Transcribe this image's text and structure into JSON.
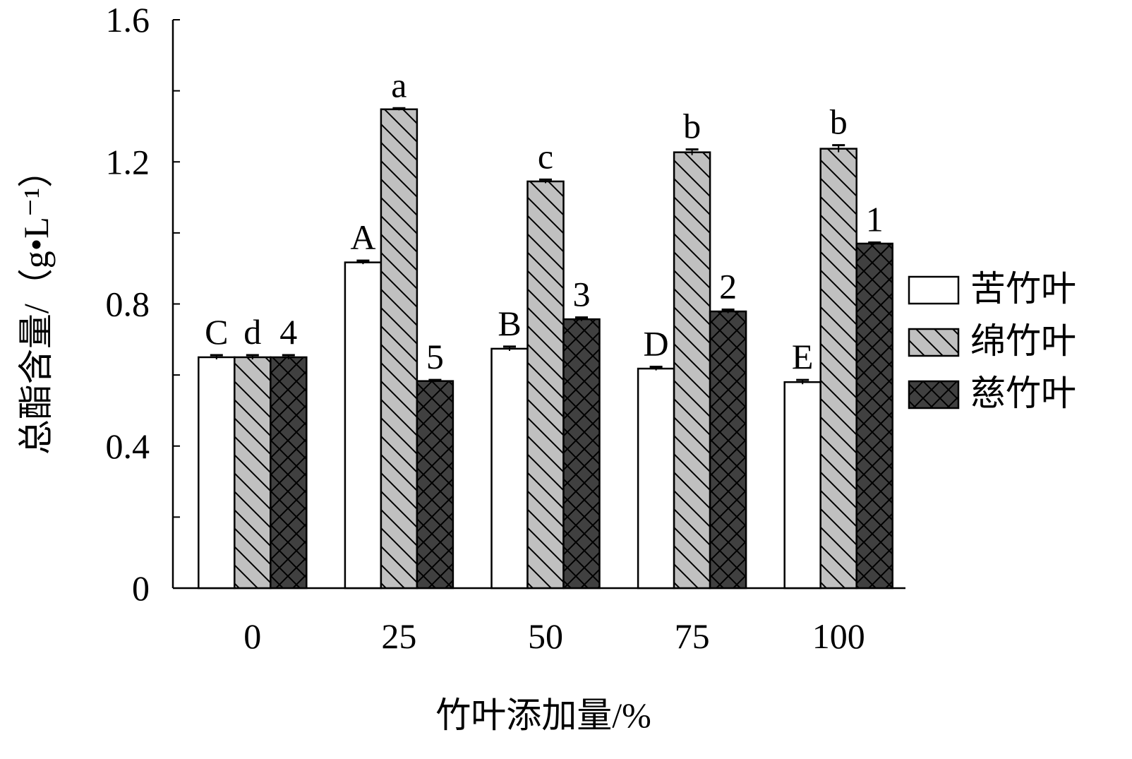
{
  "chart_data": {
    "type": "bar",
    "title": "",
    "xlabel": "竹叶添加量/%",
    "ylabel": "总酯含量/（g•L⁻¹）",
    "ylim": [
      0,
      1.6
    ],
    "yticks": [
      "0",
      "0.4",
      "0.8",
      "1.2",
      "1.6"
    ],
    "ytick_values": [
      0,
      0.4,
      0.8,
      1.2,
      1.6
    ],
    "categories": [
      "0",
      "25",
      "50",
      "75",
      "100"
    ],
    "legend_position": "right",
    "series": [
      {
        "name": "苦竹叶",
        "values": [
          0.65,
          0.917,
          0.674,
          0.618,
          0.58
        ],
        "errors": [
          0.006,
          0.005,
          0.006,
          0.005,
          0.006
        ],
        "labels": [
          "C",
          "A",
          "B",
          "D",
          "E"
        ],
        "color": "#ffffff",
        "pattern": "none"
      },
      {
        "name": "绵竹叶",
        "values": [
          0.65,
          1.348,
          1.145,
          1.227,
          1.237
        ],
        "errors": [
          0.006,
          0.003,
          0.005,
          0.008,
          0.01
        ],
        "labels": [
          "d",
          "a",
          "c",
          "b",
          "b"
        ],
        "color": "#c0c0c0",
        "pattern": "diagonal"
      },
      {
        "name": "慈竹叶",
        "values": [
          0.65,
          0.583,
          0.757,
          0.779,
          0.97
        ],
        "errors": [
          0.006,
          0.003,
          0.005,
          0.005,
          0.003
        ],
        "labels": [
          "4",
          "5",
          "3",
          "2",
          "1"
        ],
        "color": "#404040",
        "pattern": "crosshatch"
      }
    ]
  }
}
